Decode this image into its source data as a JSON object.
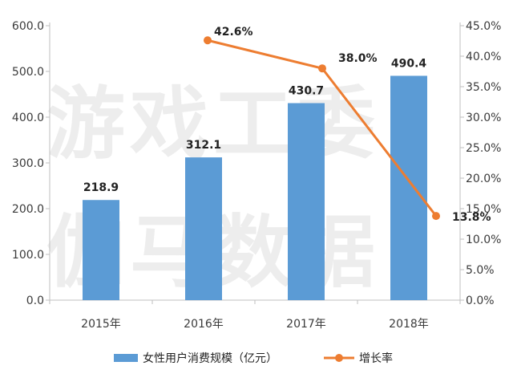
{
  "watermark": [
    "游戏工委",
    "伽马数据"
  ],
  "chart_data": {
    "type": "bar",
    "categories": [
      "2015年",
      "2016年",
      "2017年",
      "2018年"
    ],
    "series": [
      {
        "name": "女性用户消费规模（亿元）",
        "type": "bar",
        "axis": "left",
        "values": [
          218.9,
          312.1,
          430.7,
          490.4
        ],
        "labels": [
          "218.9",
          "312.1",
          "430.7",
          "490.4"
        ],
        "color": "#5b9bd5"
      },
      {
        "name": "增长率",
        "type": "line",
        "axis": "right",
        "values": [
          null,
          42.6,
          38.0,
          13.8
        ],
        "labels": [
          "",
          "42.6%",
          "38.0%",
          "13.8%"
        ],
        "color": "#ed7d31"
      }
    ],
    "ylim_left": [
      0,
      600
    ],
    "ylim_right": [
      0,
      45
    ],
    "yticks_left": [
      "0.0",
      "100.0",
      "200.0",
      "300.0",
      "400.0",
      "500.0",
      "600.0"
    ],
    "yticks_right": [
      "0.0%",
      "5.0%",
      "10.0%",
      "15.0%",
      "20.0%",
      "25.0%",
      "30.0%",
      "35.0%",
      "40.0%",
      "45.0%"
    ],
    "legend_position": "bottom",
    "grid": false
  }
}
